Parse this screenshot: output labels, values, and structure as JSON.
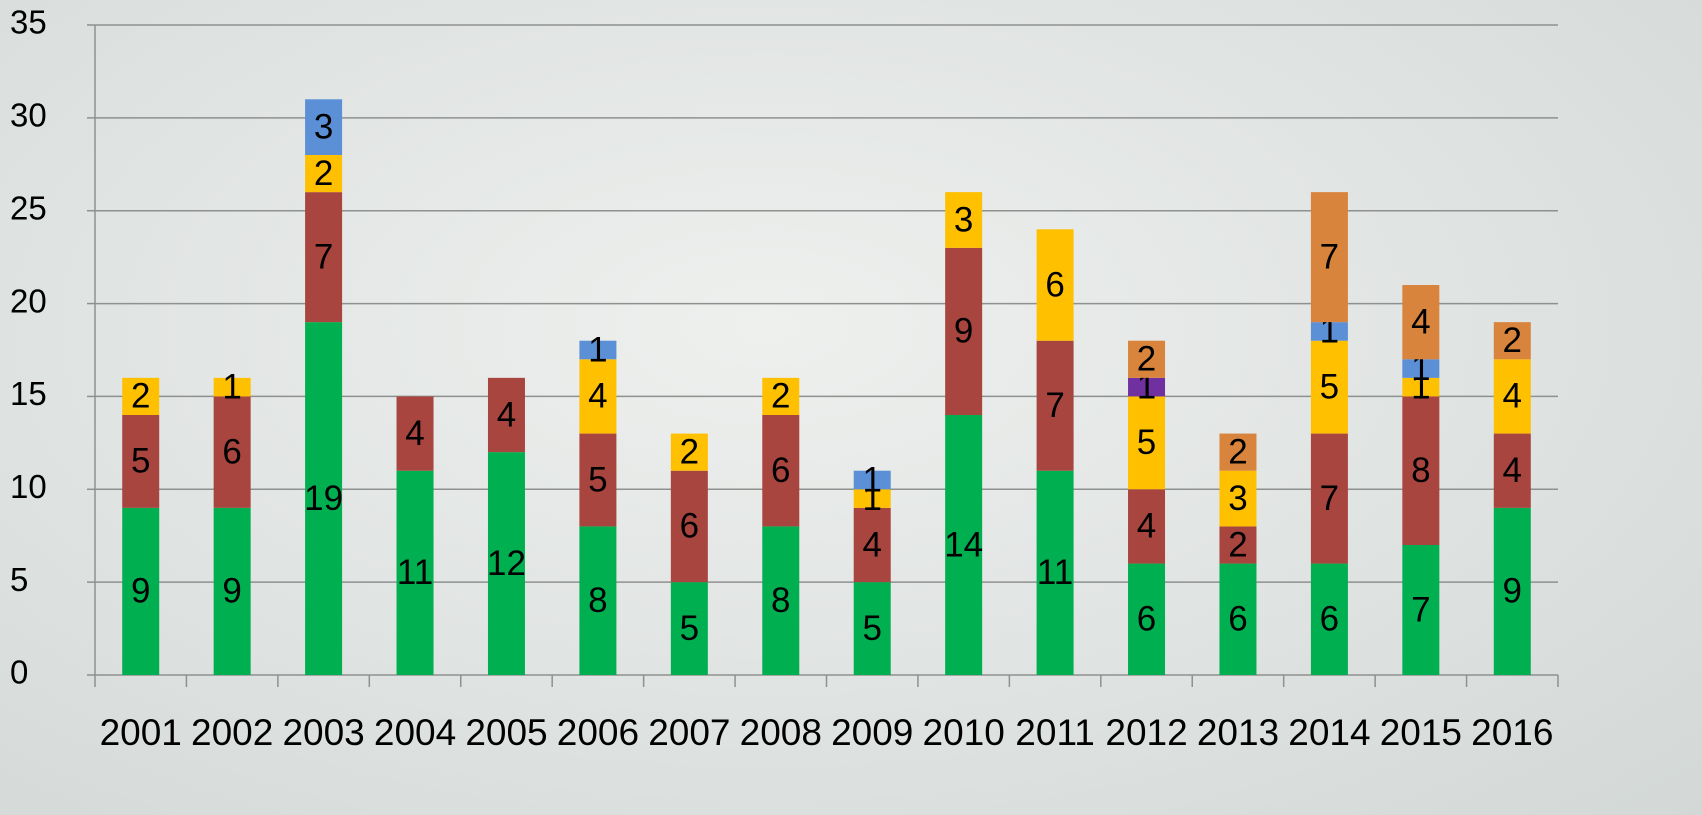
{
  "chart_data": {
    "type": "stacked_bar",
    "categories": [
      "2001",
      "2002",
      "2003",
      "2004",
      "2005",
      "2006",
      "2007",
      "2008",
      "2009",
      "2010",
      "2011",
      "2012",
      "2013",
      "2014",
      "2015",
      "2016"
    ],
    "series": [
      {
        "color": "#00b050",
        "values": [
          9,
          9,
          19,
          11,
          12,
          8,
          5,
          8,
          5,
          14,
          11,
          6,
          6,
          6,
          7,
          9
        ]
      },
      {
        "color": "#a8453f",
        "values": [
          5,
          6,
          7,
          4,
          4,
          5,
          6,
          6,
          4,
          9,
          7,
          4,
          2,
          7,
          8,
          4
        ]
      },
      {
        "color": "#ffc000",
        "values": [
          2,
          1,
          2,
          null,
          null,
          4,
          2,
          2,
          1,
          3,
          6,
          5,
          3,
          5,
          1,
          4
        ]
      },
      {
        "color": "#5b8fd6",
        "values": [
          null,
          null,
          3,
          null,
          null,
          1,
          null,
          null,
          1,
          null,
          null,
          null,
          null,
          1,
          1,
          null
        ]
      },
      {
        "color": "#7030a0",
        "values": [
          null,
          null,
          null,
          null,
          null,
          null,
          null,
          null,
          null,
          null,
          null,
          1,
          null,
          null,
          null,
          null
        ]
      },
      {
        "color": "#d9843c",
        "values": [
          null,
          null,
          null,
          null,
          null,
          null,
          null,
          null,
          null,
          null,
          null,
          2,
          2,
          7,
          4,
          2
        ]
      }
    ],
    "ylim": [
      0,
      35
    ],
    "yticks": [
      0,
      5,
      10,
      15,
      20,
      25,
      30,
      35
    ],
    "grid": true
  }
}
